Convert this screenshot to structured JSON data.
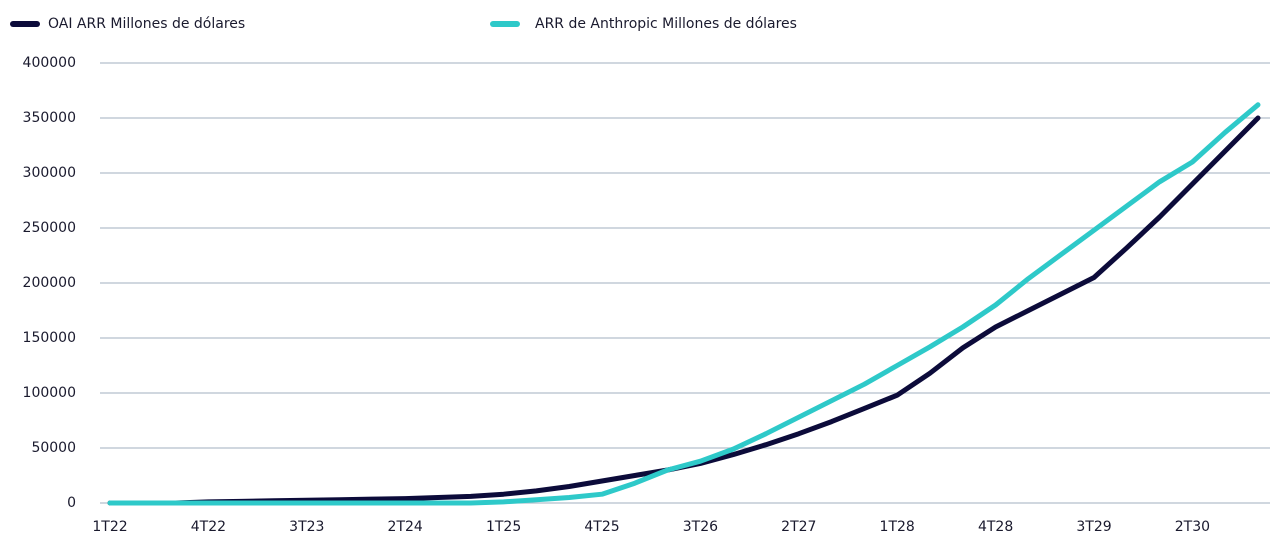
{
  "chart_data": {
    "type": "line",
    "categories": [
      "1T22",
      null,
      null,
      "4T22",
      null,
      null,
      "3T23",
      null,
      null,
      "2T24",
      null,
      null,
      "1T25",
      null,
      null,
      "4T25",
      null,
      null,
      "3T26",
      null,
      null,
      "2T27",
      null,
      null,
      "1T28",
      null,
      null,
      "4T28",
      null,
      null,
      "3T29",
      null,
      null,
      "2T30",
      null,
      null
    ],
    "series": [
      {
        "name": "OAI ARR Millones de dólares",
        "color": "#0c0b3a",
        "values": [
          0,
          0,
          0,
          1000,
          1500,
          2000,
          2500,
          3000,
          3500,
          4000,
          5000,
          6000,
          8000,
          11000,
          15000,
          20000,
          25000,
          30000,
          36000,
          44000,
          53000,
          63000,
          74000,
          86000,
          98000,
          118000,
          141000,
          160000,
          175000,
          190000,
          205000,
          232000,
          260000,
          290000,
          320000,
          350000
        ]
      },
      {
        "name": "ARR de Anthropic Millones de dólares",
        "color": "#2ec9c9",
        "values": [
          0,
          0,
          0,
          0,
          0,
          0,
          0,
          0,
          0,
          0,
          0,
          0,
          1000,
          3000,
          5000,
          8000,
          18000,
          30000,
          38000,
          49000,
          63000,
          78000,
          93000,
          108000,
          125000,
          142000,
          160000,
          180000,
          204000,
          226000,
          248000,
          270000,
          292000,
          310000,
          337000,
          362000
        ]
      }
    ],
    "ylim": [
      0,
      400000
    ],
    "yticks": [
      0,
      50000,
      100000,
      150000,
      200000,
      250000,
      300000,
      350000,
      400000
    ],
    "grid": true,
    "legend": "top"
  }
}
